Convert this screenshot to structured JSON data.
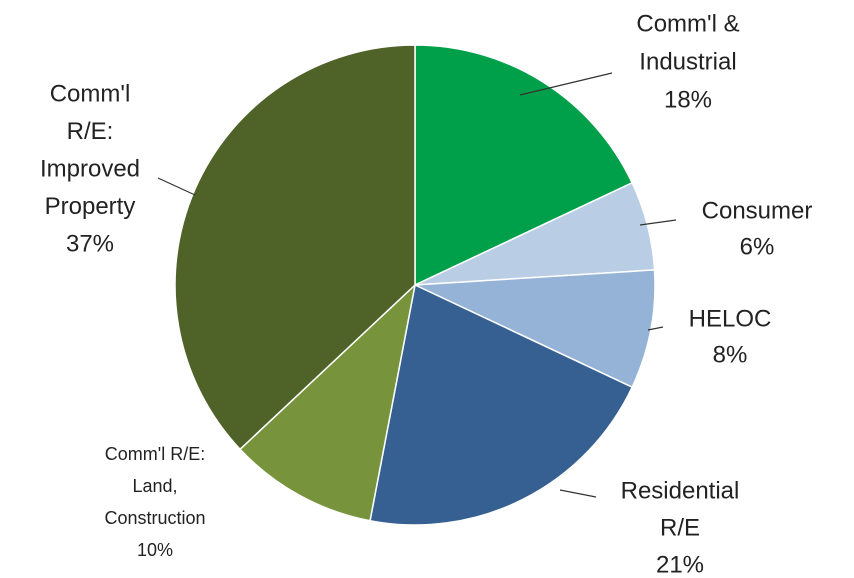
{
  "chart_data": {
    "type": "pie",
    "categories": [
      [
        "Comm'l &",
        "Industrial"
      ],
      [
        "Consumer"
      ],
      [
        "HELOC"
      ],
      [
        "Residential",
        "R/E"
      ],
      [
        "Comm'l R/E:",
        "Land,",
        "Construction"
      ],
      [
        "Comm'l",
        "R/E:",
        "Improved",
        "Property"
      ]
    ],
    "values": [
      18,
      6,
      8,
      21,
      10,
      37
    ],
    "value_labels": [
      "18%",
      "6%",
      "8%",
      "21%",
      "10%",
      "37%"
    ],
    "colors": [
      "#00a04a",
      "#b9cde5",
      "#95b3d7",
      "#366092",
      "#77933c",
      "#4f6228"
    ]
  }
}
